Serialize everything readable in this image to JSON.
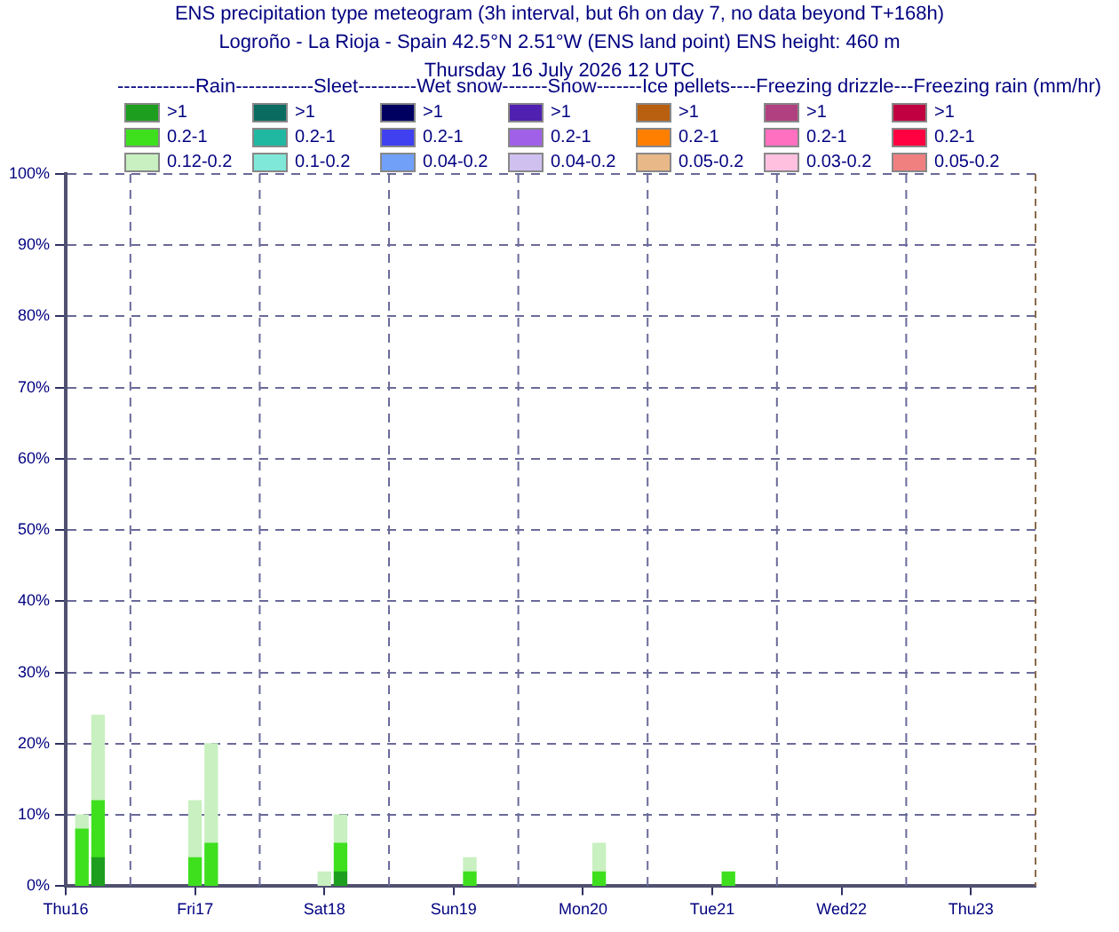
{
  "chart_data": {
    "type": "bar",
    "title": "ENS precipitation type meteogram (3h interval, but 6h on day 7, no data beyond T+168h)",
    "subtitle": "Logroño - La Rioja - Spain 42.5°N 2.51°W (ENS land point) ENS height: 460 m",
    "annotations": [
      "Thursday 16 July 2026 12 UTC"
    ],
    "legend_title": "------------Rain------------Sleet---------Wet snow-------Snow-------Ice pellets----Freezing drizzle---Freezing rain (mm/hr)",
    "legend": "top",
    "stacked": true,
    "grid": "y",
    "x": [
      "2026-07-16T15:00",
      "2026-07-16T18:00",
      "2026-07-17T12:00",
      "2026-07-17T15:00",
      "2026-07-18T12:00",
      "2026-07-18T15:00",
      "2026-07-19T15:00",
      "2026-07-20T15:00",
      "2026-07-21T15:00"
    ],
    "xlim": [
      "2026-07-16T12:00",
      "2026-07-24T00:00"
    ],
    "xticks": [
      {
        "value": "2026-07-16T12:00",
        "label": "Thu16"
      },
      {
        "value": "2026-07-17T12:00",
        "label": "Fri17"
      },
      {
        "value": "2026-07-18T12:00",
        "label": "Sat18"
      },
      {
        "value": "2026-07-19T12:00",
        "label": "Sun19"
      },
      {
        "value": "2026-07-20T12:00",
        "label": "Mon20"
      },
      {
        "value": "2026-07-21T12:00",
        "label": "Tue21"
      },
      {
        "value": "2026-07-22T12:00",
        "label": "Wed22"
      },
      {
        "value": "2026-07-23T12:00",
        "label": "Thu23"
      }
    ],
    "ylim": [
      0,
      100
    ],
    "yticks": [
      {
        "value": 0,
        "label": "0%"
      },
      {
        "value": 10,
        "label": "10%"
      },
      {
        "value": 20,
        "label": "20%"
      },
      {
        "value": 30,
        "label": "30%"
      },
      {
        "value": 40,
        "label": "40%"
      },
      {
        "value": 50,
        "label": "50%"
      },
      {
        "value": 60,
        "label": "60%"
      },
      {
        "value": 70,
        "label": "70%"
      },
      {
        "value": 80,
        "label": "80%"
      },
      {
        "value": 90,
        "label": "90%"
      },
      {
        "value": 100,
        "label": "100%"
      }
    ],
    "ref_lines": [
      {
        "axis": "x",
        "value": "2026-07-17T00:00",
        "line_style": "dashed"
      },
      {
        "axis": "x",
        "value": "2026-07-18T00:00",
        "line_style": "dashed"
      },
      {
        "axis": "x",
        "value": "2026-07-19T00:00",
        "line_style": "dashed"
      },
      {
        "axis": "x",
        "value": "2026-07-20T00:00",
        "line_style": "dashed"
      },
      {
        "axis": "x",
        "value": "2026-07-21T00:00",
        "line_style": "dashed"
      },
      {
        "axis": "x",
        "value": "2026-07-22T00:00",
        "line_style": "dashed"
      },
      {
        "axis": "x",
        "value": "2026-07-23T00:00",
        "line_style": "dashed"
      }
    ],
    "series": [
      {
        "name": ">1",
        "color": "#1e9e1e",
        "values": [
          null,
          4,
          null,
          null,
          null,
          2,
          null,
          null,
          null
        ]
      },
      {
        "name": "0.2-1",
        "color": "#3ee01e",
        "values": [
          8,
          8,
          4,
          6,
          null,
          4,
          2,
          2,
          2
        ]
      },
      {
        "name": "0.12-0.2",
        "color": "#c8f0c0",
        "values": [
          2,
          12,
          8,
          14,
          2,
          4,
          2,
          4,
          null
        ]
      },
      {
        "name": ">1",
        "color": "#0a6b60",
        "values": [
          null,
          null,
          null,
          null,
          null,
          null,
          null,
          null,
          null
        ]
      },
      {
        "name": "0.2-1",
        "color": "#20b8a0",
        "values": [
          null,
          null,
          null,
          null,
          null,
          null,
          null,
          null,
          null
        ]
      },
      {
        "name": "0.1-0.2",
        "color": "#80e8d8",
        "values": [
          null,
          null,
          null,
          null,
          null,
          null,
          null,
          null,
          null
        ]
      },
      {
        "name": ">1",
        "color": "#000060",
        "values": [
          null,
          null,
          null,
          null,
          null,
          null,
          null,
          null,
          null
        ]
      },
      {
        "name": "0.2-1",
        "color": "#4040f0",
        "values": [
          null,
          null,
          null,
          null,
          null,
          null,
          null,
          null,
          null
        ]
      },
      {
        "name": "0.04-0.2",
        "color": "#70a0f8",
        "values": [
          null,
          null,
          null,
          null,
          null,
          null,
          null,
          null,
          null
        ]
      },
      {
        "name": ">1",
        "color": "#5020b0",
        "values": [
          null,
          null,
          null,
          null,
          null,
          null,
          null,
          null,
          null
        ]
      },
      {
        "name": "0.2-1",
        "color": "#a060e8",
        "values": [
          null,
          null,
          null,
          null,
          null,
          null,
          null,
          null,
          null
        ]
      },
      {
        "name": "0.04-0.2",
        "color": "#d0c0f0",
        "values": [
          null,
          null,
          null,
          null,
          null,
          null,
          null,
          null,
          null
        ]
      },
      {
        "name": ">1",
        "color": "#b86010",
        "values": [
          null,
          null,
          null,
          null,
          null,
          null,
          null,
          null,
          null
        ]
      },
      {
        "name": "0.2-1",
        "color": "#ff8000",
        "values": [
          null,
          null,
          null,
          null,
          null,
          null,
          null,
          null,
          null
        ]
      },
      {
        "name": "0.05-0.2",
        "color": "#e8b888",
        "values": [
          null,
          null,
          null,
          null,
          null,
          null,
          null,
          null,
          null
        ]
      },
      {
        "name": ">1",
        "color": "#b04080",
        "values": [
          null,
          null,
          null,
          null,
          null,
          null,
          null,
          null,
          null
        ]
      },
      {
        "name": "0.2-1",
        "color": "#ff70c0",
        "values": [
          null,
          null,
          null,
          null,
          null,
          null,
          null,
          null,
          null
        ]
      },
      {
        "name": "0.03-0.2",
        "color": "#ffc0e0",
        "values": [
          null,
          null,
          null,
          null,
          null,
          null,
          null,
          null,
          null
        ]
      },
      {
        "name": ">1",
        "color": "#c00040",
        "values": [
          null,
          null,
          null,
          null,
          null,
          null,
          null,
          null,
          null
        ]
      },
      {
        "name": "0.2-1",
        "color": "#ff0040",
        "values": [
          null,
          null,
          null,
          null,
          null,
          null,
          null,
          null,
          null
        ]
      },
      {
        "name": "0.05-0.2",
        "color": "#f08080",
        "values": [
          null,
          null,
          null,
          null,
          null,
          null,
          null,
          null,
          null
        ]
      }
    ]
  }
}
